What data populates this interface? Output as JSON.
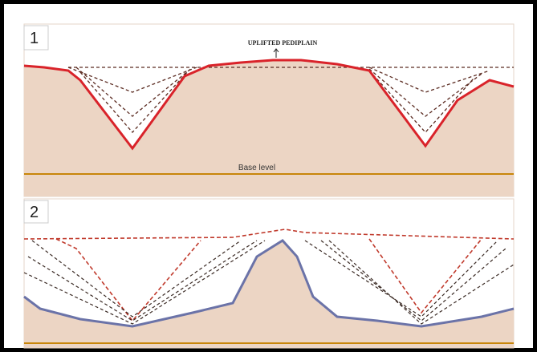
{
  "panels": [
    {
      "label": "1",
      "caption": "UPLIFTED PEDIPLAIN",
      "base_label": "Base level"
    },
    {
      "label": "2"
    }
  ]
}
